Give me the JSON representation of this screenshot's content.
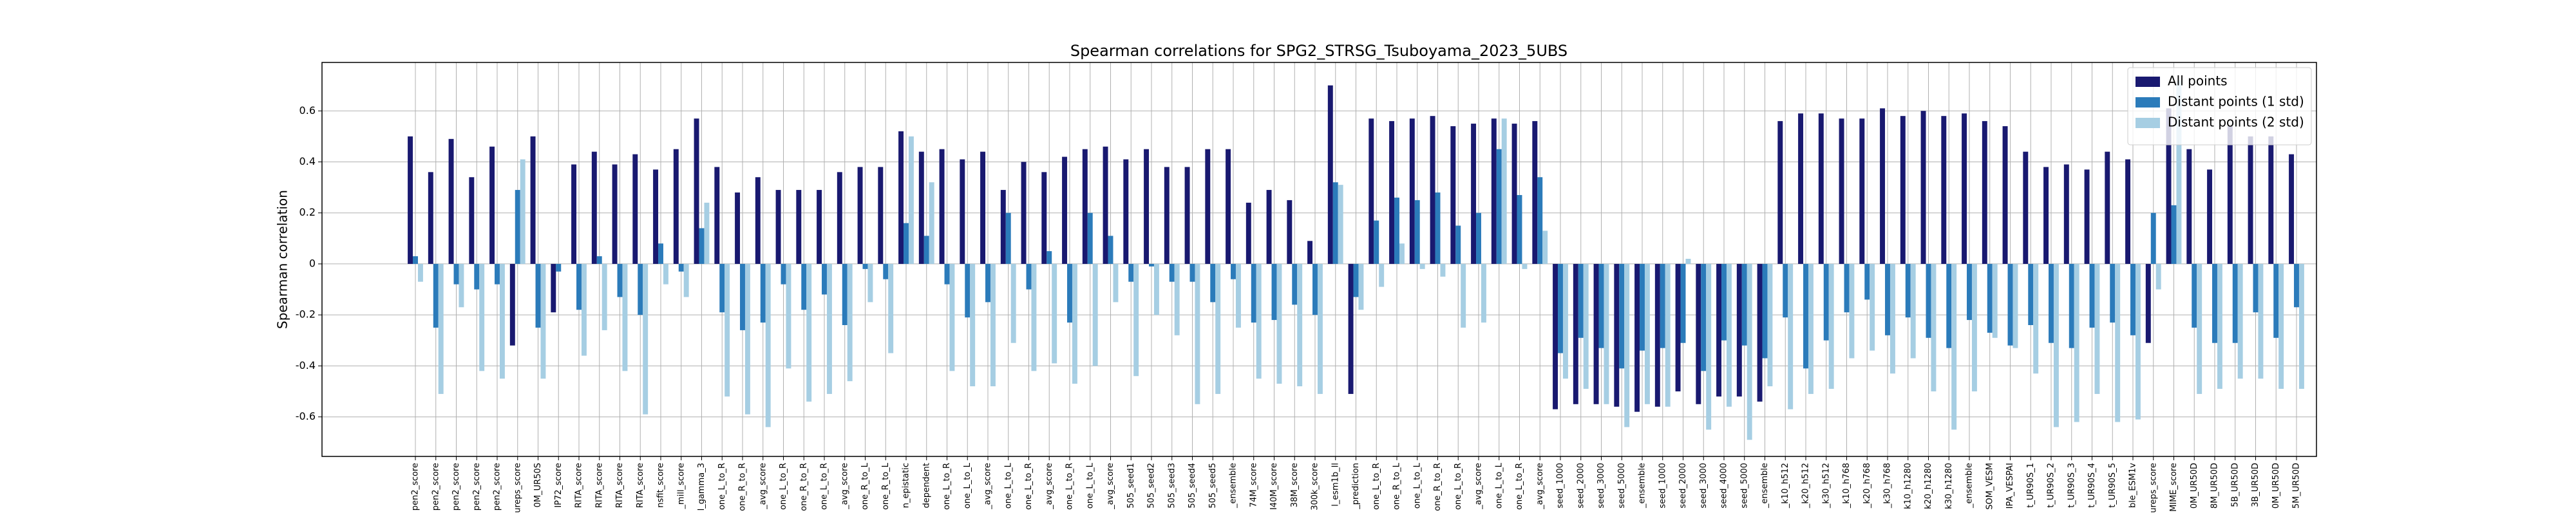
{
  "chart_data": {
    "type": "bar",
    "title": "Spearman correlations for SPG2_STRSG_Tsuboyama_2023_5UBS",
    "y_label": "Spearman correlation",
    "categories": [
      "pen2_score",
      "pen2_score",
      "pen2_score",
      "pen2_score",
      "pen2_score",
      "ureps_score",
      "0M_UR50S",
      "IP72_score",
      "RITA_score",
      "RITA_score",
      "RITA_score",
      "RITA_score",
      "nsfit_score",
      "_mill_score",
      "l_gamma_3",
      "one_L_to_R",
      "one_R_to_R",
      "_avg_score",
      "one_L_to_R",
      "one_R_to_R",
      "one_L_to_R",
      "_avg_score",
      "one_R_to_L",
      "one_R_to_L",
      "n_epistatic",
      "dependent",
      "one_L_to_R",
      "one_L_to_L",
      "_avg_score",
      "one_L_to_L",
      "one_L_to_R",
      "_avg_score",
      "one_L_to_R",
      "one_L_to_L",
      "_avg_score",
      "505_seed1",
      "505_seed2",
      "505_seed3",
      "505_seed4",
      "505_seed5",
      "_ensemble",
      "74M_score",
      "I40M_score",
      "38M_score",
      "300k_score",
      "l_esm1b_ll",
      "_prediction",
      "one_L_to_R",
      "one_R_to_L",
      "one_L_to_L",
      "one_R_to_R",
      "one_L_to_R",
      "_avg_score",
      "one_L_to_L",
      "one_L_to_R",
      "_avg_score",
      "seed_1000",
      "seed_2000",
      "seed_3000",
      "seed_5000",
      "_ensemble",
      "seed_1000",
      "seed_2000",
      "seed_3000",
      "seed_4000",
      "seed_5000",
      "_ensemble",
      "_k10_h512",
      "_k20_h512",
      "_k30_h512",
      "_k10_h768",
      "_k20_h768",
      "_k30_h768",
      "k10_h1280",
      "k20_h1280",
      "k30_h1280",
      "_ensemble",
      "SOM_VESM",
      "IPA_VESPAI",
      "t_UR90S_1",
      "t_UR90S_2",
      "t_UR90S_3",
      "t_UR90S_4",
      "t_UR90S_5",
      "ble_ESM1v",
      "ureps_score",
      "MIME_score",
      "0M_UR50D",
      "8M_UR50D",
      "5B_UR50D",
      "3B_UR50D",
      "0M_UR50D",
      "5M_UR50D"
    ],
    "series": [
      {
        "name": "All points",
        "color": "#191970",
        "values": [
          0.5,
          0.36,
          0.49,
          0.34,
          0.46,
          -0.32,
          0.5,
          -0.19,
          0.39,
          0.44,
          0.39,
          0.43,
          0.37,
          0.45,
          0.57,
          0.38,
          0.28,
          0.34,
          0.29,
          0.29,
          0.29,
          0.36,
          0.38,
          0.38,
          0.52,
          0.44,
          0.45,
          0.41,
          0.44,
          0.29,
          0.4,
          0.36,
          0.42,
          0.45,
          0.46,
          0.41,
          0.45,
          0.38,
          0.38,
          0.45,
          0.45,
          0.24,
          0.29,
          0.25,
          0.09,
          0.7,
          -0.51,
          0.57,
          0.56,
          0.57,
          0.58,
          0.54,
          0.55,
          0.57,
          0.55,
          0.56,
          -0.57,
          -0.55,
          -0.55,
          -0.56,
          -0.58,
          -0.56,
          -0.5,
          -0.55,
          -0.52,
          -0.52,
          -0.54,
          0.56,
          0.59,
          0.59,
          0.57,
          0.57,
          0.61,
          0.58,
          0.6,
          0.58,
          0.59,
          0.56,
          0.54,
          0.44,
          0.38,
          0.39,
          0.37,
          0.44,
          0.41,
          -0.31,
          0.61,
          0.45,
          0.37,
          0.54,
          0.5,
          0.5,
          0.43
        ]
      },
      {
        "name": "Distant points (1 std)",
        "color": "#2b7bba",
        "values": [
          0.03,
          -0.25,
          -0.08,
          -0.1,
          -0.08,
          0.29,
          -0.25,
          -0.03,
          -0.18,
          0.03,
          -0.13,
          -0.2,
          0.08,
          -0.03,
          0.14,
          -0.19,
          -0.26,
          -0.23,
          -0.08,
          -0.18,
          -0.12,
          -0.24,
          -0.02,
          -0.06,
          0.16,
          0.11,
          -0.08,
          -0.21,
          -0.15,
          0.2,
          -0.1,
          0.05,
          -0.23,
          0.2,
          0.11,
          -0.07,
          -0.01,
          -0.07,
          -0.07,
          -0.15,
          -0.06,
          -0.23,
          -0.22,
          -0.16,
          -0.2,
          0.32,
          -0.13,
          0.17,
          0.26,
          0.25,
          0.28,
          0.15,
          0.2,
          0.45,
          0.27,
          0.34,
          -0.35,
          -0.29,
          -0.33,
          -0.41,
          -0.34,
          -0.33,
          -0.31,
          -0.42,
          -0.3,
          -0.32,
          -0.37,
          -0.21,
          -0.41,
          -0.3,
          -0.19,
          -0.14,
          -0.28,
          -0.21,
          -0.29,
          -0.33,
          -0.22,
          -0.27,
          -0.32,
          -0.24,
          -0.31,
          -0.33,
          -0.25,
          -0.23,
          -0.28,
          0.2,
          0.23,
          -0.25,
          -0.31,
          -0.31,
          -0.19,
          -0.29,
          -0.17
        ]
      },
      {
        "name": "Distant points (2 std)",
        "color": "#a6cee3",
        "values": [
          -0.07,
          -0.51,
          -0.17,
          -0.42,
          -0.45,
          0.41,
          -0.45,
          0.0,
          -0.36,
          -0.26,
          -0.42,
          -0.59,
          -0.08,
          -0.13,
          0.24,
          -0.52,
          -0.59,
          -0.64,
          -0.41,
          -0.54,
          -0.51,
          -0.46,
          -0.15,
          -0.35,
          0.5,
          0.32,
          -0.42,
          -0.48,
          -0.48,
          -0.31,
          -0.42,
          -0.39,
          -0.47,
          -0.4,
          -0.15,
          -0.44,
          -0.2,
          -0.28,
          -0.55,
          -0.51,
          -0.25,
          -0.45,
          -0.47,
          -0.48,
          -0.51,
          0.31,
          -0.18,
          -0.09,
          0.08,
          -0.02,
          -0.05,
          -0.25,
          -0.23,
          0.57,
          -0.02,
          0.13,
          -0.45,
          -0.49,
          -0.55,
          -0.64,
          -0.55,
          -0.56,
          0.02,
          -0.65,
          -0.56,
          -0.69,
          -0.48,
          -0.57,
          -0.51,
          -0.49,
          -0.37,
          -0.34,
          -0.43,
          -0.37,
          -0.5,
          -0.65,
          -0.5,
          -0.29,
          -0.33,
          -0.43,
          -0.64,
          -0.62,
          -0.51,
          -0.62,
          -0.61,
          -0.1,
          0.72,
          -0.51,
          -0.49,
          -0.45,
          -0.45,
          -0.49,
          -0.49
        ]
      }
    ],
    "ylim": [
      -0.755,
      0.79
    ],
    "yticks": [
      -0.6,
      -0.4,
      -0.2,
      0.0,
      0.2,
      0.4,
      0.6
    ],
    "grid": true,
    "legend": "upper right"
  }
}
